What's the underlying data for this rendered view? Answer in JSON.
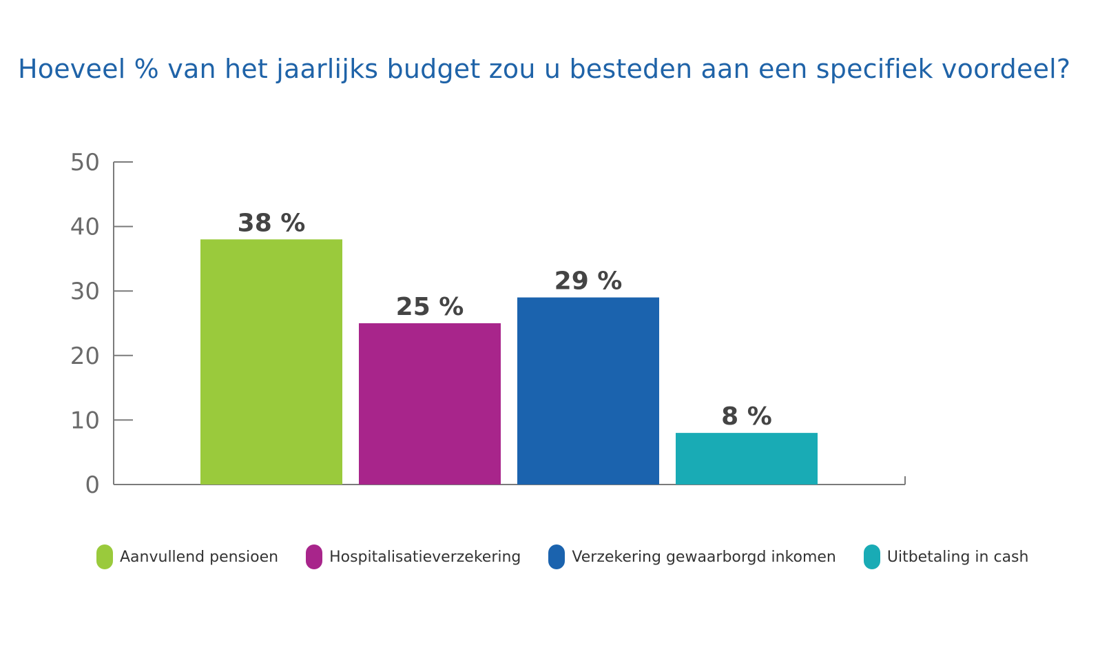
{
  "chart_data": {
    "type": "bar",
    "title": "Hoeveel % van het jaarlijks budget zou u besteden aan een specifiek voordeel?",
    "categories": [
      "Aanvullend pensioen",
      "Hospitalisatieverzekering",
      "Verzekering gewaarborgd inkomen",
      "Uitbetaling in cash"
    ],
    "values": [
      38,
      25,
      29,
      8
    ],
    "value_labels": [
      "38 %",
      "25 %",
      "29 %",
      "8 %"
    ],
    "colors": [
      "#9aca3c",
      "#a8258b",
      "#1b63ae",
      "#19abb5"
    ],
    "ylim": [
      0,
      50
    ],
    "yticks": [
      0,
      10,
      20,
      30,
      40,
      50
    ],
    "xlabel": "",
    "ylabel": "",
    "legend_position": "bottom",
    "grid": false
  }
}
